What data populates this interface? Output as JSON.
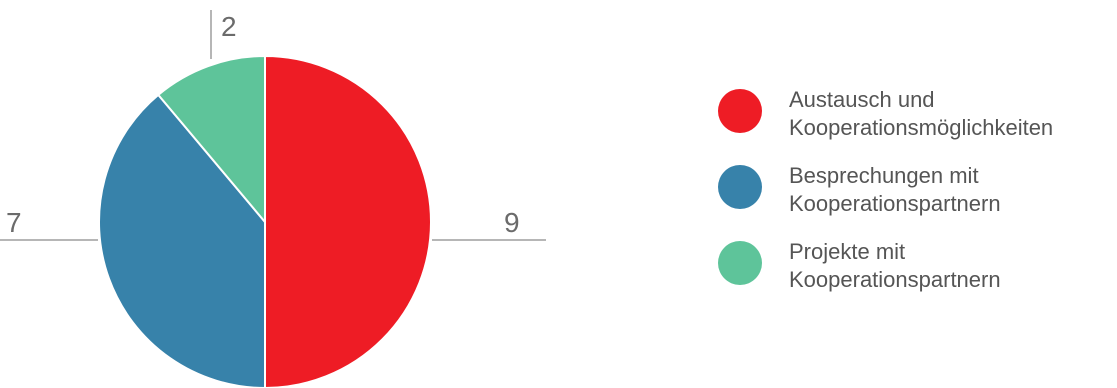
{
  "chart_data": {
    "type": "pie",
    "categories": [
      "Austausch und Kooperationsmöglichkeiten",
      "Besprechungen mit Kooperationspartnern",
      "Projekte mit Kooperationspartnern"
    ],
    "values": [
      9,
      7,
      2
    ],
    "data_labels": [
      "9",
      "7",
      "2"
    ],
    "colors": [
      "#ee1c25",
      "#3782aa",
      "#5ec49a"
    ],
    "title": "",
    "legend_position": "right"
  },
  "legend": {
    "items": [
      {
        "label": "Austausch und Kooperationsmöglichkeiten",
        "color": "#ee1c25"
      },
      {
        "label": "Besprechungen mit Kooperationspartnern",
        "color": "#3782aa"
      },
      {
        "label": "Projekte mit Kooperationspartnern",
        "color": "#5ec49a"
      }
    ]
  }
}
